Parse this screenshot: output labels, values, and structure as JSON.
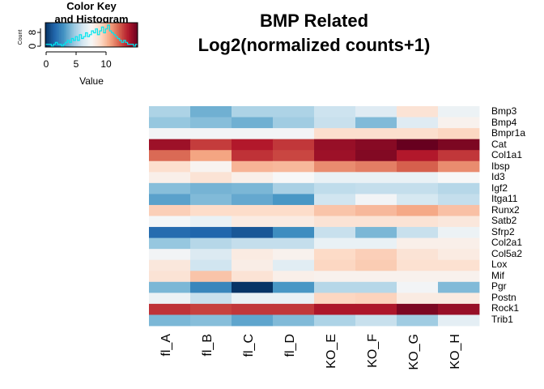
{
  "chart_data": {
    "type": "heatmap",
    "title": [
      "BMP Related",
      "Log2(normalized counts+1)"
    ],
    "color_key": {
      "title": [
        "Color Key",
        "and Histogram"
      ],
      "xlabel": "Value",
      "ylabel": "Count",
      "x_ticks": [
        "0",
        "5",
        "10"
      ],
      "y_ticks": [
        "0",
        "8"
      ],
      "range": [
        0,
        14
      ],
      "colors": {
        "low": "#053061",
        "mid": "#f7f7f7",
        "high": "#67001f",
        "histogram": "#00e5ee"
      },
      "histogram": [
        1,
        1,
        1,
        0,
        1,
        2,
        1,
        1,
        0,
        1,
        2,
        3,
        2,
        4,
        3,
        5,
        3,
        6,
        4,
        5,
        7,
        5,
        6,
        8,
        7,
        9,
        6,
        8,
        10,
        7,
        9,
        11,
        8,
        7,
        6,
        5,
        4,
        3,
        2,
        3,
        2,
        1,
        1,
        1,
        0,
        1
      ]
    },
    "columns": [
      "fl_A",
      "fl_B",
      "fl_C",
      "fl_D",
      "KO_E",
      "KO_F",
      "KO_G",
      "KO_H"
    ],
    "rows": [
      "Bmp3",
      "Bmp4",
      "Bmpr1a",
      "Cat",
      "Col1a1",
      "Ibsp",
      "Id3",
      "Igf2",
      "Itga11",
      "Runx2",
      "Satb2",
      "Sfrp2",
      "Col2a1",
      "Col5a2",
      "Lox",
      "Mif",
      "Pgr",
      "Postn",
      "Rock1",
      "Trib1"
    ],
    "values": [
      [
        4.8,
        3.6,
        4.8,
        4.8,
        5.5,
        6.1,
        8.0,
        6.6
      ],
      [
        4.3,
        4.0,
        3.6,
        4.5,
        5.4,
        3.9,
        6.1,
        7.3
      ],
      [
        6.8,
        6.8,
        6.8,
        6.8,
        8.2,
        8.2,
        8.2,
        8.5
      ],
      [
        13.0,
        11.9,
        12.6,
        12.0,
        13.1,
        13.4,
        14.0,
        13.6
      ],
      [
        11.0,
        9.8,
        12.1,
        11.7,
        13.0,
        13.5,
        12.6,
        12.0
      ],
      [
        8.2,
        7.2,
        9.4,
        9.3,
        10.3,
        10.6,
        11.2,
        10.3
      ],
      [
        7.4,
        8.0,
        7.4,
        7.0,
        6.5,
        6.5,
        6.5,
        7.0
      ],
      [
        4.0,
        3.7,
        3.8,
        4.7,
        5.2,
        5.3,
        5.3,
        5.0
      ],
      [
        3.2,
        3.9,
        3.4,
        2.9,
        5.6,
        6.8,
        5.8,
        5.3
      ],
      [
        8.7,
        8.3,
        8.3,
        8.3,
        9.0,
        9.3,
        9.7,
        9.1
      ],
      [
        6.9,
        6.5,
        7.6,
        7.6,
        8.0,
        8.0,
        8.0,
        7.8
      ],
      [
        1.6,
        1.4,
        1.0,
        2.6,
        5.4,
        3.8,
        5.4,
        6.6
      ],
      [
        4.3,
        5.0,
        5.3,
        5.3,
        6.5,
        6.5,
        7.4,
        7.4
      ],
      [
        6.8,
        6.0,
        7.6,
        7.3,
        8.4,
        8.7,
        8.0,
        7.6
      ],
      [
        7.8,
        5.6,
        7.5,
        6.2,
        8.5,
        8.8,
        8.1,
        8.1
      ],
      [
        8.0,
        9.0,
        8.0,
        7.4,
        7.3,
        7.3,
        7.3,
        7.3
      ],
      [
        3.8,
        2.4,
        0.1,
        2.9,
        5.0,
        5.0,
        6.8,
        3.9
      ],
      [
        6.6,
        5.4,
        6.5,
        6.5,
        8.5,
        8.6,
        7.6,
        7.6
      ],
      [
        12.1,
        11.8,
        12.0,
        12.0,
        12.7,
        12.7,
        13.6,
        13.1
      ],
      [
        3.8,
        4.0,
        3.3,
        3.9,
        4.8,
        5.4,
        4.5,
        6.3
      ]
    ]
  }
}
